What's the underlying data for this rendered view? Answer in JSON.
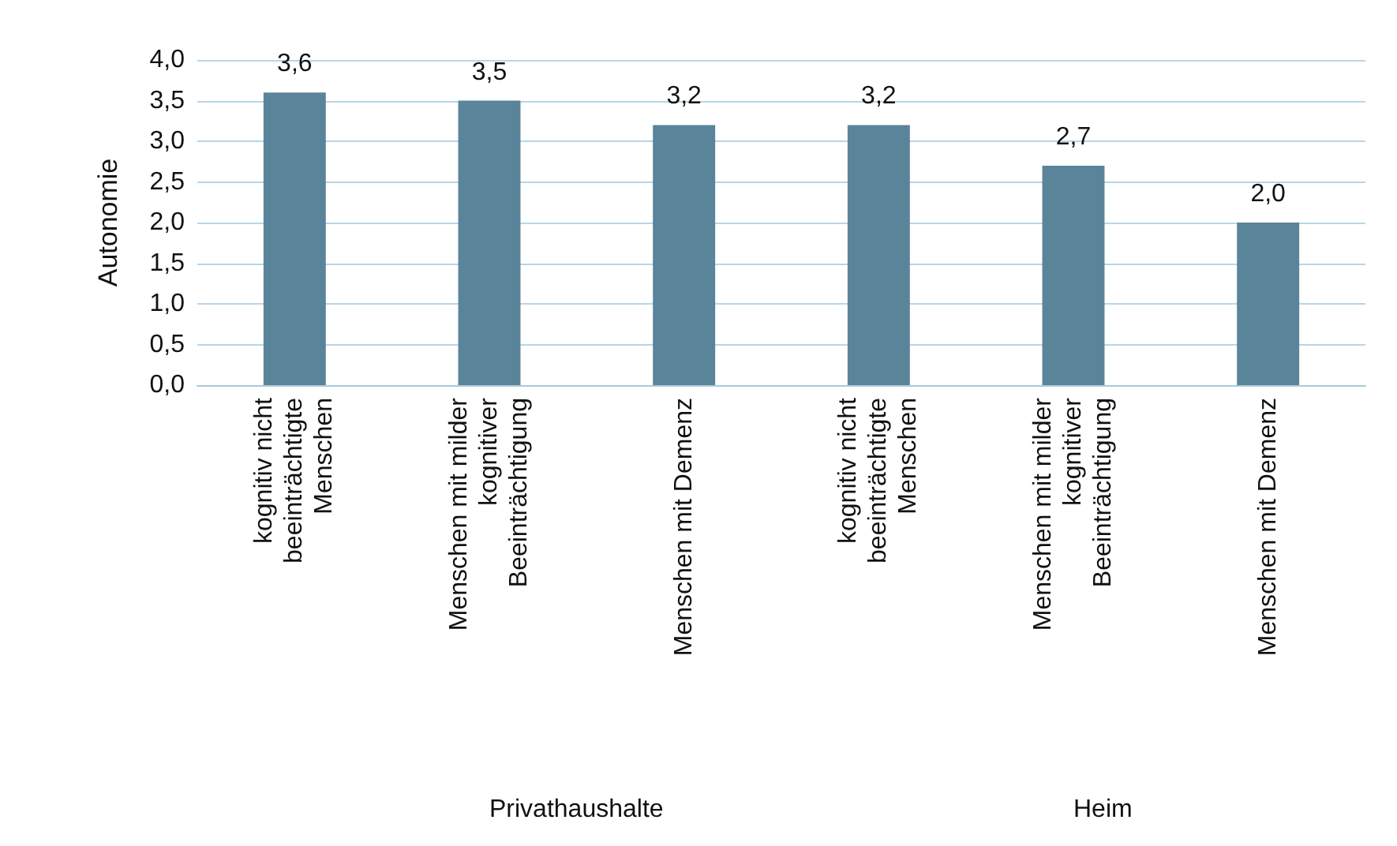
{
  "chart_data": {
    "type": "bar",
    "ylabel": "Autonomie",
    "categories": [
      "kognitiv nicht beeinträchtigte Menschen",
      "Menschen mit milder kognitiver Beeinträchtigung",
      "Menschen mit Demenz",
      "kognitiv nicht beeinträchtigte Menschen",
      "Menschen mit milder kognitiver Beeinträchtigung",
      "Menschen mit Demenz"
    ],
    "values": [
      3.6,
      3.5,
      3.2,
      3.2,
      2.7,
      2.0
    ],
    "value_labels": [
      "3,6",
      "3,5",
      "3,2",
      "3,2",
      "2,7",
      "2,0"
    ],
    "color": "#5a8499",
    "ylim": [
      0,
      4
    ],
    "yticks": [
      {
        "value": 0,
        "label": "0,0"
      },
      {
        "value": 0.5,
        "label": "0,5"
      },
      {
        "value": 1,
        "label": "1,0"
      },
      {
        "value": 1.5,
        "label": "1,5"
      },
      {
        "value": 2,
        "label": "2,0"
      },
      {
        "value": 2.5,
        "label": "2,5"
      },
      {
        "value": 3,
        "label": "3,0"
      },
      {
        "value": 3.5,
        "label": "3,5"
      },
      {
        "value": 4,
        "label": "4,0"
      }
    ],
    "annotations": [
      "Privathaushalte",
      "Heim"
    ],
    "grid": "y"
  }
}
